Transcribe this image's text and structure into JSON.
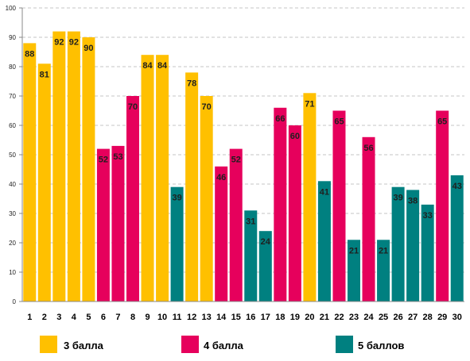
{
  "chart_data": {
    "type": "bar",
    "categories": [
      "1",
      "2",
      "3",
      "4",
      "5",
      "6",
      "7",
      "8",
      "9",
      "10",
      "11",
      "12",
      "13",
      "14",
      "15",
      "16",
      "17",
      "18",
      "19",
      "20",
      "21",
      "22",
      "23",
      "24",
      "25",
      "26",
      "27",
      "28",
      "29",
      "30"
    ],
    "values": [
      88,
      81,
      92,
      92,
      90,
      52,
      53,
      70,
      84,
      84,
      39,
      78,
      70,
      46,
      52,
      31,
      24,
      66,
      60,
      71,
      41,
      65,
      21,
      56,
      21,
      39,
      38,
      33,
      65,
      43
    ],
    "groups": [
      0,
      0,
      0,
      0,
      0,
      1,
      1,
      1,
      0,
      0,
      2,
      0,
      0,
      1,
      1,
      2,
      2,
      1,
      1,
      0,
      2,
      1,
      2,
      1,
      2,
      2,
      2,
      2,
      1,
      2
    ],
    "series": [
      {
        "name": "3 балла",
        "color": "#FFC000"
      },
      {
        "name": "4 балла",
        "color": "#E6005C"
      },
      {
        "name": "5 баллов",
        "color": "#008080"
      }
    ],
    "ylim": [
      0,
      100
    ],
    "yticks": [
      0,
      10,
      20,
      30,
      40,
      50,
      60,
      70,
      80,
      90,
      100
    ],
    "grid": true,
    "legend_position": "bottom",
    "title": "",
    "xlabel": "",
    "ylabel": ""
  }
}
